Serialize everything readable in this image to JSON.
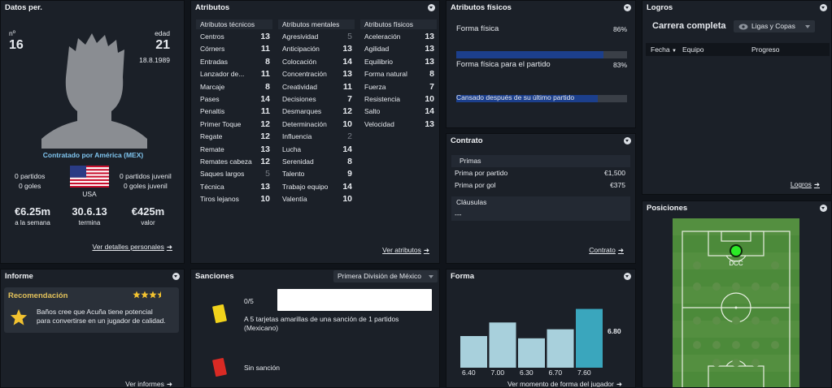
{
  "datos": {
    "title": "Datos per.",
    "num_label": "nº",
    "num_value": "16",
    "age_label": "edad",
    "age_value": "21",
    "birth_date": "18.8.1989",
    "contracted": "Contratado por América (MEX)",
    "left_stats": [
      "0 partidos",
      "0 goles"
    ],
    "right_stats": [
      "0 partidos juvenil",
      "0 goles juvenil"
    ],
    "nation": "USA",
    "wage_value": "€6.25m",
    "wage_label": "a la semana",
    "expires_value": "30.6.13",
    "expires_label": "termina",
    "value_value": "€425m",
    "value_label": "valor",
    "link": "Ver detalles personales"
  },
  "atributos": {
    "title": "Atributos",
    "tecnicos": {
      "header": "Atributos técnicos",
      "items": [
        {
          "n": "Centros",
          "v": "13"
        },
        {
          "n": "Córners",
          "v": "11"
        },
        {
          "n": "Entradas",
          "v": "8"
        },
        {
          "n": "Lanzador de...",
          "v": "11"
        },
        {
          "n": "Marcaje",
          "v": "8"
        },
        {
          "n": "Pases",
          "v": "14"
        },
        {
          "n": "Penaltis",
          "v": "11"
        },
        {
          "n": "Primer Toque",
          "v": "12"
        },
        {
          "n": "Regate",
          "v": "12"
        },
        {
          "n": "Remate",
          "v": "13"
        },
        {
          "n": "Remates cabeza",
          "v": "12"
        },
        {
          "n": "Saques largos",
          "v": "5"
        },
        {
          "n": "Técnica",
          "v": "13"
        },
        {
          "n": "Tiros lejanos",
          "v": "10"
        }
      ]
    },
    "mentales": {
      "header": "Atributos mentales",
      "items": [
        {
          "n": "Agresividad",
          "v": "5"
        },
        {
          "n": "Anticipación",
          "v": "13"
        },
        {
          "n": "Colocación",
          "v": "14"
        },
        {
          "n": "Concentración",
          "v": "13"
        },
        {
          "n": "Creatividad",
          "v": "11"
        },
        {
          "n": "Decisiones",
          "v": "7"
        },
        {
          "n": "Desmarques",
          "v": "12"
        },
        {
          "n": "Determinación",
          "v": "10"
        },
        {
          "n": "Influencia",
          "v": "2"
        },
        {
          "n": "Lucha",
          "v": "14"
        },
        {
          "n": "Serenidad",
          "v": "8"
        },
        {
          "n": "Talento",
          "v": "9"
        },
        {
          "n": "Trabajo equipo",
          "v": "14"
        },
        {
          "n": "Valentía",
          "v": "10"
        }
      ]
    },
    "fisicos": {
      "header": "Atributos físicos",
      "items": [
        {
          "n": "Aceleración",
          "v": "13"
        },
        {
          "n": "Agilidad",
          "v": "13"
        },
        {
          "n": "Equilibrio",
          "v": "13"
        },
        {
          "n": "Forma natural",
          "v": "8"
        },
        {
          "n": "Fuerza",
          "v": "7"
        },
        {
          "n": "Resistencia",
          "v": "10"
        },
        {
          "n": "Salto",
          "v": "14"
        },
        {
          "n": "Velocidad",
          "v": "13"
        }
      ]
    },
    "link": "Ver atributos"
  },
  "fisicos_panel": {
    "title": "Atributos físicos",
    "forma_label": "Forma física",
    "forma_value": "86%",
    "forma_fraction": 0.86,
    "partido_label": "Forma física para el partido",
    "partido_value": "83%",
    "partido_fraction": 0.83,
    "note": "Cansado después de su último partido"
  },
  "logros": {
    "title": "Logros",
    "career": "Carrera completa",
    "filter": "Ligas y Copas",
    "columns": [
      "Fecha",
      "Equipo",
      "Progreso"
    ],
    "link": "Logros"
  },
  "contrato": {
    "title": "Contrato",
    "primas_header": "Primas",
    "rows": [
      {
        "n": "Prima por partido",
        "v": "€1,500"
      },
      {
        "n": "Prima por gol",
        "v": "€375"
      }
    ],
    "clausulas_header": "Cláusulas",
    "clausulas_value": "---",
    "link": "Contrato"
  },
  "posiciones": {
    "title": "Posiciones",
    "position_label": "DCC"
  },
  "informe": {
    "title": "Informe",
    "rec_title": "Recomendación",
    "rec_text": [
      "Baños cree que Acuña tiene potencial",
      "para convertirse en un jugador de calidad."
    ],
    "stars": 3.5,
    "link": "Ver informes"
  },
  "sanciones": {
    "title": "Sanciones",
    "league": "Primera División de México",
    "count": "0/5",
    "yellow_text": [
      "A 5 tarjetas amarillas de una sanción de 1 partidos",
      "(Mexicano)"
    ],
    "red_text": "Sin sanción"
  },
  "forma": {
    "title": "Forma",
    "link": "Ver momento de forma del jugador"
  },
  "chart_data": {
    "type": "bar",
    "categories": [
      "6.40",
      "7.00",
      "6.30",
      "6.70",
      "7.60"
    ],
    "values": [
      6.4,
      7.0,
      6.3,
      6.7,
      7.6
    ],
    "average_label": "6.80",
    "ylim": [
      5.0,
      7.8
    ],
    "colors": [
      "#a8d0dc",
      "#a8d0dc",
      "#a8d0dc",
      "#a8d0dc",
      "#3aa6bd"
    ]
  }
}
